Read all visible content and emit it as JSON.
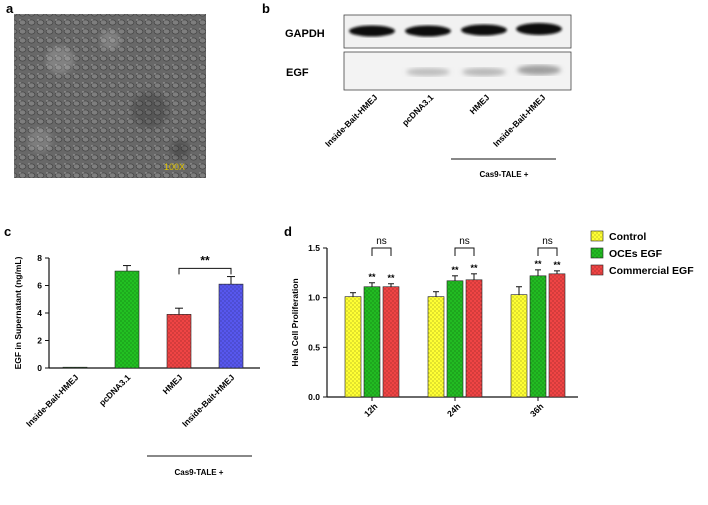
{
  "panels": {
    "a": {
      "label": "a",
      "magnification": "100X"
    },
    "b": {
      "label": "b",
      "rows": [
        "GAPDH",
        "EGF"
      ],
      "lanes": [
        "Inside-Bait-HMEJ",
        "pcDNA3.1",
        "HMEJ",
        "Inside-Bait-HMEJ"
      ],
      "group_label": "Cas9-TALE +"
    },
    "c": {
      "label": "c",
      "group_label": "Cas9-TALE +",
      "significance": "**"
    },
    "d": {
      "label": "d",
      "ns_label": "ns",
      "star_label": "**"
    }
  },
  "chart_data": [
    {
      "id": "c",
      "type": "bar",
      "title": "",
      "xlabel": "",
      "ylabel": "EGF in Supernatant   (ng/mL)",
      "ylim": [
        0,
        8
      ],
      "yticks": [
        "0",
        "2",
        "4",
        "6",
        "8"
      ],
      "categories": [
        "Inside-Bait-HMEJ",
        "pcDNA3.1",
        "HMEJ",
        "Inside-Bait-HMEJ"
      ],
      "values": [
        0.05,
        7.05,
        3.9,
        6.1
      ],
      "errors": [
        0.0,
        0.4,
        0.45,
        0.55
      ],
      "colors": [
        "#2f7d2f",
        "#22c022",
        "#ef4444",
        "#5757ee"
      ],
      "grid": false
    },
    {
      "id": "d",
      "type": "bar",
      "title": "",
      "xlabel": "",
      "ylabel": "Hela Cell Proliferation",
      "ylim": [
        0,
        1.5
      ],
      "yticks": [
        "0.0",
        "0.5",
        "1.0",
        "1.5"
      ],
      "categories": [
        "12h",
        "24h",
        "36h"
      ],
      "series": [
        {
          "name": "Control",
          "values": [
            1.01,
            1.01,
            1.03
          ],
          "errors": [
            0.04,
            0.05,
            0.08
          ],
          "color": "#ffff33"
        },
        {
          "name": "OCEs EGF",
          "values": [
            1.11,
            1.17,
            1.22
          ],
          "errors": [
            0.04,
            0.05,
            0.06
          ],
          "color": "#22bb22"
        },
        {
          "name": "Commercial EGF",
          "values": [
            1.11,
            1.18,
            1.24
          ],
          "errors": [
            0.03,
            0.06,
            0.03
          ],
          "color": "#ef4444"
        }
      ],
      "legend": "right",
      "grid": false
    }
  ]
}
